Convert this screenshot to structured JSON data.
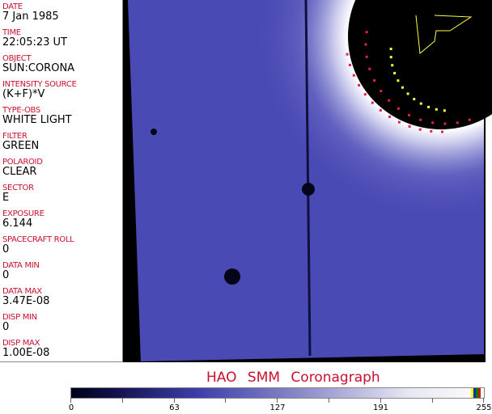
{
  "fields": [
    {
      "label": "DATE",
      "value": "7 Jan 1985"
    },
    {
      "label": "TIME",
      "value": "22:05:23 UT"
    },
    {
      "label": "OBJECT",
      "value": "SUN:CORONA"
    },
    {
      "label": "INTENSITY SOURCE",
      "value": "(K+F)*V"
    },
    {
      "label": "TYPE-OBS",
      "value": "WHITE LIGHT"
    },
    {
      "label": "FILTER",
      "value": "GREEN"
    },
    {
      "label": "POLAROID",
      "value": "CLEAR"
    },
    {
      "label": "SECTOR",
      "value": "E"
    },
    {
      "label": "EXPOSURE",
      "value": "6.144"
    },
    {
      "label": "SPACECRAFT ROLL",
      "value": "0"
    },
    {
      "label": "DATA MIN",
      "value": "0"
    },
    {
      "label": "DATA MAX",
      "value": "3.47E-08"
    },
    {
      "label": "DISP MIN",
      "value": "0"
    },
    {
      "label": "DISP MAX",
      "value": "1.00E-08"
    }
  ],
  "title": "HAO SMM Coronagraph",
  "colorbar": {
    "ticks": [
      "0",
      "63",
      "127",
      "191",
      "255"
    ],
    "colormap": "black-blue-white",
    "colors": {
      "label": "#c8102e",
      "coronal": "#4a4ab4"
    }
  }
}
